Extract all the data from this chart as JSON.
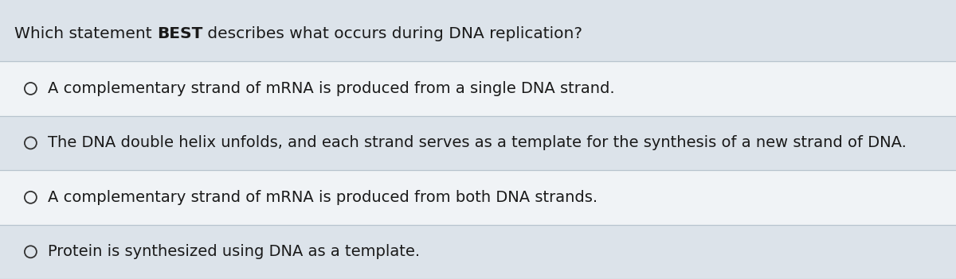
{
  "background_color": "#dce3ea",
  "question_bg": "#dce3ea",
  "option_row_colors": [
    "#f0f3f6",
    "#dce3ea",
    "#f0f3f6",
    "#dce3ea"
  ],
  "line_color": "#b8c4ce",
  "text_color": "#1a1a1a",
  "circle_color": "#333333",
  "question_text1": "Which statement ",
  "question_text2": "BEST",
  "question_text3": " describes what occurs during DNA replication?",
  "options": [
    "A complementary strand of mRNA is produced from a single DNA strand.",
    "The DNA double helix unfolds, and each strand serves as a template for the synthesis of a new strand of DNA.",
    "A complementary strand of mRNA is produced from both DNA strands.",
    "Protein is synthesized using DNA as a template."
  ],
  "question_fontsize": 14.5,
  "option_fontsize": 14.0,
  "fig_width": 12.0,
  "fig_height": 3.51,
  "dpi": 100
}
